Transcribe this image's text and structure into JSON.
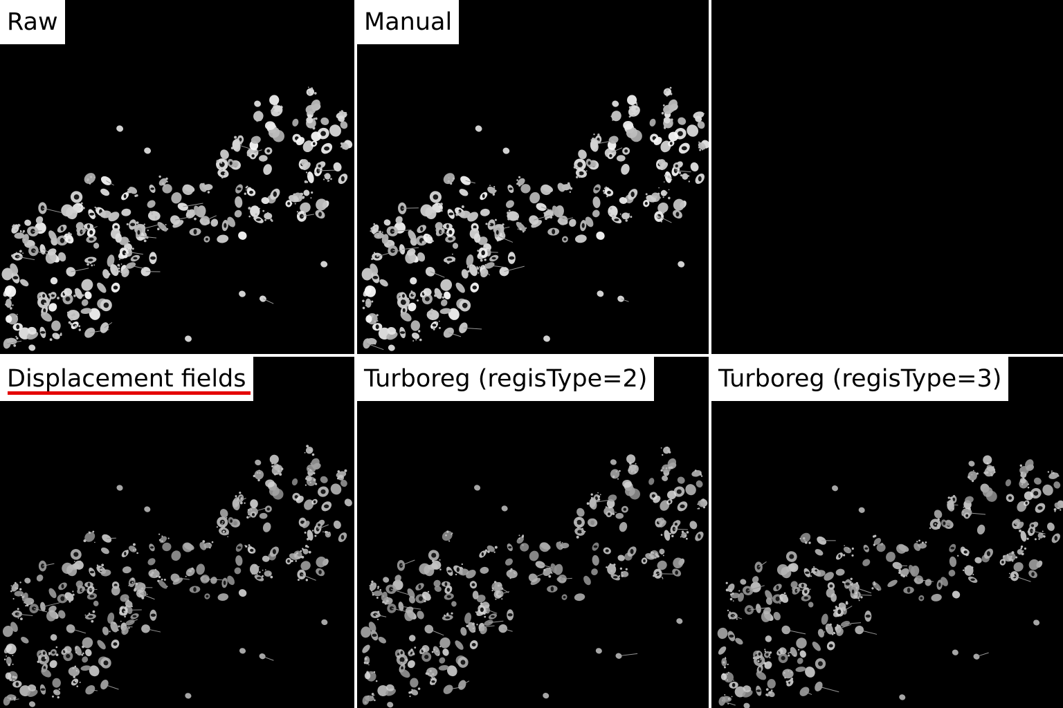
{
  "panels": [
    {
      "label": "Raw",
      "has_image": true,
      "underlined": false
    },
    {
      "label": "Manual",
      "has_image": true,
      "underlined": false
    },
    {
      "label": "",
      "has_image": false,
      "underlined": false
    },
    {
      "label": "Displacement fields",
      "has_image": true,
      "underlined": true
    },
    {
      "label": "Turboreg (regisType=2)",
      "has_image": true,
      "underlined": false
    },
    {
      "label": "Turboreg (regisType=3)",
      "has_image": true,
      "underlined": false
    }
  ],
  "colors": {
    "background": "#000000",
    "separator": "#ffffff",
    "label_bg": "#ffffff",
    "label_text": "#000000",
    "underline": "#e40000",
    "cells": "#d9d9d9"
  }
}
